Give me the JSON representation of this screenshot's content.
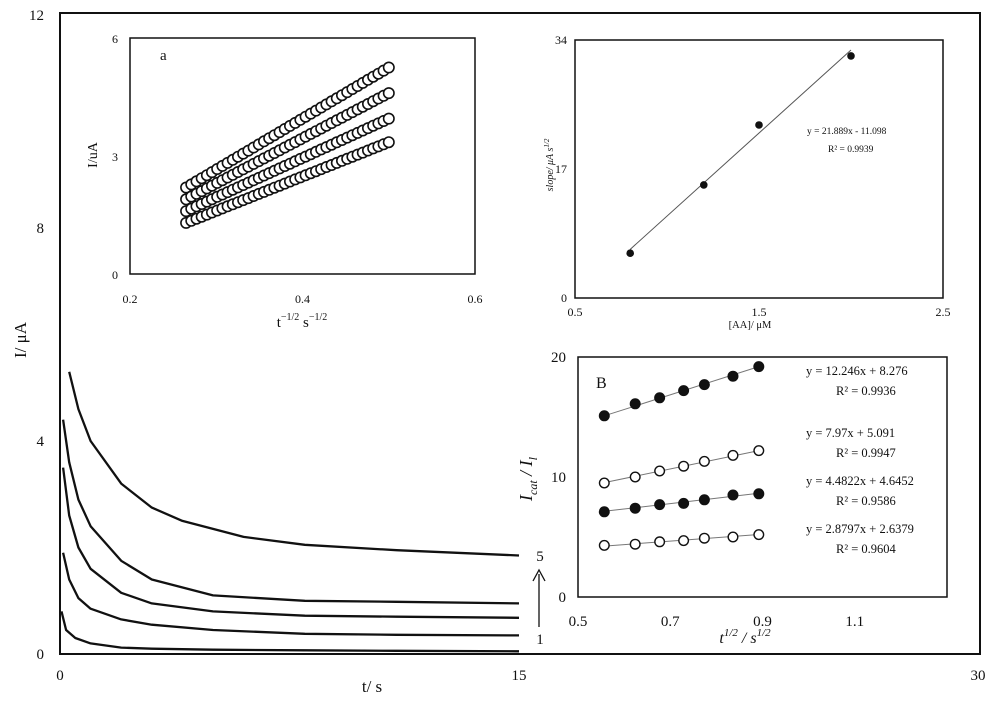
{
  "chart_data": [
    {
      "id": "main",
      "type": "line",
      "xlabel": "t/ s",
      "ylabel": "I/ μA",
      "xlim": [
        0,
        30
      ],
      "ylim": [
        0,
        12
      ],
      "xticks": [
        "0",
        "15",
        "30"
      ],
      "yticks": [
        "0",
        "4",
        "8",
        "12"
      ],
      "curve_labels": [
        "1",
        "5"
      ],
      "series": [
        {
          "x": [
            0.05,
            0.2,
            0.5,
            1,
            2,
            3,
            5,
            8,
            11,
            15
          ],
          "y": [
            0.8,
            0.45,
            0.3,
            0.2,
            0.12,
            0.1,
            0.08,
            0.07,
            0.06,
            0.05
          ]
        },
        {
          "x": [
            0.1,
            0.3,
            0.6,
            1,
            2,
            3,
            5,
            8,
            11,
            15
          ],
          "y": [
            1.9,
            1.4,
            1.05,
            0.85,
            0.65,
            0.55,
            0.45,
            0.38,
            0.36,
            0.35
          ]
        },
        {
          "x": [
            0.1,
            0.3,
            0.6,
            1,
            2,
            3,
            5,
            8,
            11,
            15
          ],
          "y": [
            3.5,
            2.6,
            2.0,
            1.6,
            1.15,
            0.95,
            0.8,
            0.72,
            0.7,
            0.68
          ]
        },
        {
          "x": [
            0.1,
            0.3,
            0.6,
            1,
            2,
            3,
            5,
            8,
            11,
            15
          ],
          "y": [
            4.4,
            3.6,
            2.9,
            2.4,
            1.75,
            1.4,
            1.1,
            1.0,
            0.98,
            0.95
          ]
        },
        {
          "x": [
            0.3,
            0.6,
            1,
            2,
            3,
            4,
            6,
            8,
            11,
            15
          ],
          "y": [
            5.3,
            4.6,
            4.0,
            3.2,
            2.75,
            2.5,
            2.2,
            2.05,
            1.95,
            1.85
          ]
        }
      ]
    },
    {
      "id": "inset_a",
      "type": "scatter",
      "panel_label": "a",
      "xlabel": "t^{-1/2} s^{-1/2}",
      "ylabel": "I/uA",
      "xlim": [
        0.2,
        0.6
      ],
      "ylim": [
        0,
        6
      ],
      "xticks": [
        "0.2",
        "0.4",
        "0.6"
      ],
      "yticks": [
        "0",
        "3",
        "6"
      ],
      "series": [
        {
          "x_range": [
            0.265,
            0.5
          ],
          "y_range": [
            2.2,
            5.25
          ]
        },
        {
          "x_range": [
            0.265,
            0.5
          ],
          "y_range": [
            1.9,
            4.6
          ]
        },
        {
          "x_range": [
            0.265,
            0.5
          ],
          "y_range": [
            1.6,
            3.95
          ]
        },
        {
          "x_range": [
            0.265,
            0.5
          ],
          "y_range": [
            1.3,
            3.35
          ]
        }
      ]
    },
    {
      "id": "inset_slope",
      "type": "scatter",
      "ylabel": "slope/ μA s^{1/2}",
      "xlabel": "[AA]/ μM",
      "xlim": [
        0.5,
        2.5
      ],
      "ylim": [
        0,
        34
      ],
      "xticks": [
        "0.5",
        "1.5",
        "2.5"
      ],
      "yticks": [
        "0",
        "17",
        "34"
      ],
      "x": [
        0.8,
        1.2,
        1.5,
        2.0
      ],
      "y": [
        5.9,
        14.9,
        22.8,
        31.9
      ],
      "equation": "y = 21.889x - 11.098",
      "r2": "R² = 0.9939"
    },
    {
      "id": "inset_B",
      "type": "scatter",
      "panel_label": "B",
      "ylabel": "I_cat / I_l",
      "xlabel": "t^{1/2} / s^{1/2}",
      "xlim": [
        0.5,
        1.3
      ],
      "ylim": [
        0,
        20
      ],
      "xticks": [
        "0.5",
        "0.7",
        "0.9",
        "1.1"
      ],
      "yticks": [
        "0",
        "10",
        "20"
      ],
      "x": [
        0.557,
        0.624,
        0.677,
        0.729,
        0.774,
        0.836,
        0.892
      ],
      "series": [
        {
          "marker": "filled",
          "equation": "y = 12.246x + 8.276",
          "r2": "R² = 0.9936",
          "y": [
            15.1,
            16.1,
            16.6,
            17.2,
            17.7,
            18.4,
            19.2
          ]
        },
        {
          "marker": "open",
          "equation": "y = 7.97x + 5.091",
          "r2": "R² = 0.9947",
          "y": [
            9.5,
            10.0,
            10.5,
            10.9,
            11.3,
            11.8,
            12.2
          ]
        },
        {
          "marker": "filled",
          "equation": "y = 4.4822x + 4.6452",
          "r2": "R² = 0.9586",
          "y": [
            7.1,
            7.4,
            7.7,
            7.8,
            8.1,
            8.5,
            8.6
          ]
        },
        {
          "marker": "open",
          "equation": "y = 2.8797x + 2.6379",
          "r2": "R² = 0.9604",
          "y": [
            4.3,
            4.4,
            4.6,
            4.7,
            4.9,
            5.0,
            5.2
          ]
        }
      ]
    }
  ]
}
